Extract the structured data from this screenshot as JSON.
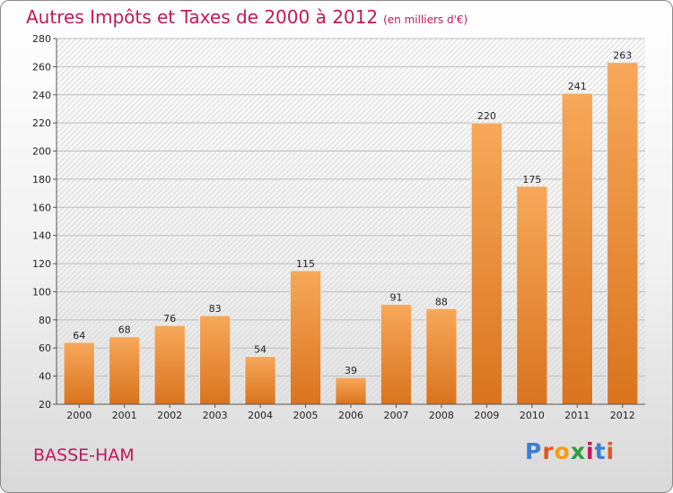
{
  "title": "Autres Impôts et Taxes de 2000 à 2012",
  "title_unit": "(en milliers d'€)",
  "commune": "BASSE-HAM",
  "logo": {
    "letters": [
      "P",
      "r",
      "o",
      "x",
      "i",
      "t",
      "i"
    ],
    "colors": [
      "#3a7fd5",
      "#e8541c",
      "#f39c12",
      "#2e9e3e",
      "#c2185b",
      "#3a7fd5",
      "#e8541c"
    ]
  },
  "colors": {
    "title": "#c2185b",
    "bar_top": "#f7a85a",
    "bar_bottom": "#d9741f"
  },
  "chart_data": {
    "type": "bar",
    "categories": [
      "2000",
      "2001",
      "2002",
      "2003",
      "2004",
      "2005",
      "2006",
      "2007",
      "2008",
      "2009",
      "2010",
      "2011",
      "2012"
    ],
    "values": [
      64,
      68,
      76,
      83,
      54,
      115,
      39,
      91,
      88,
      220,
      175,
      241,
      263
    ],
    "ylim": [
      20,
      280
    ],
    "yticks": [
      20,
      40,
      60,
      80,
      100,
      120,
      140,
      160,
      180,
      200,
      220,
      240,
      260,
      280
    ],
    "grid": true,
    "xlabel": "",
    "ylabel": ""
  }
}
